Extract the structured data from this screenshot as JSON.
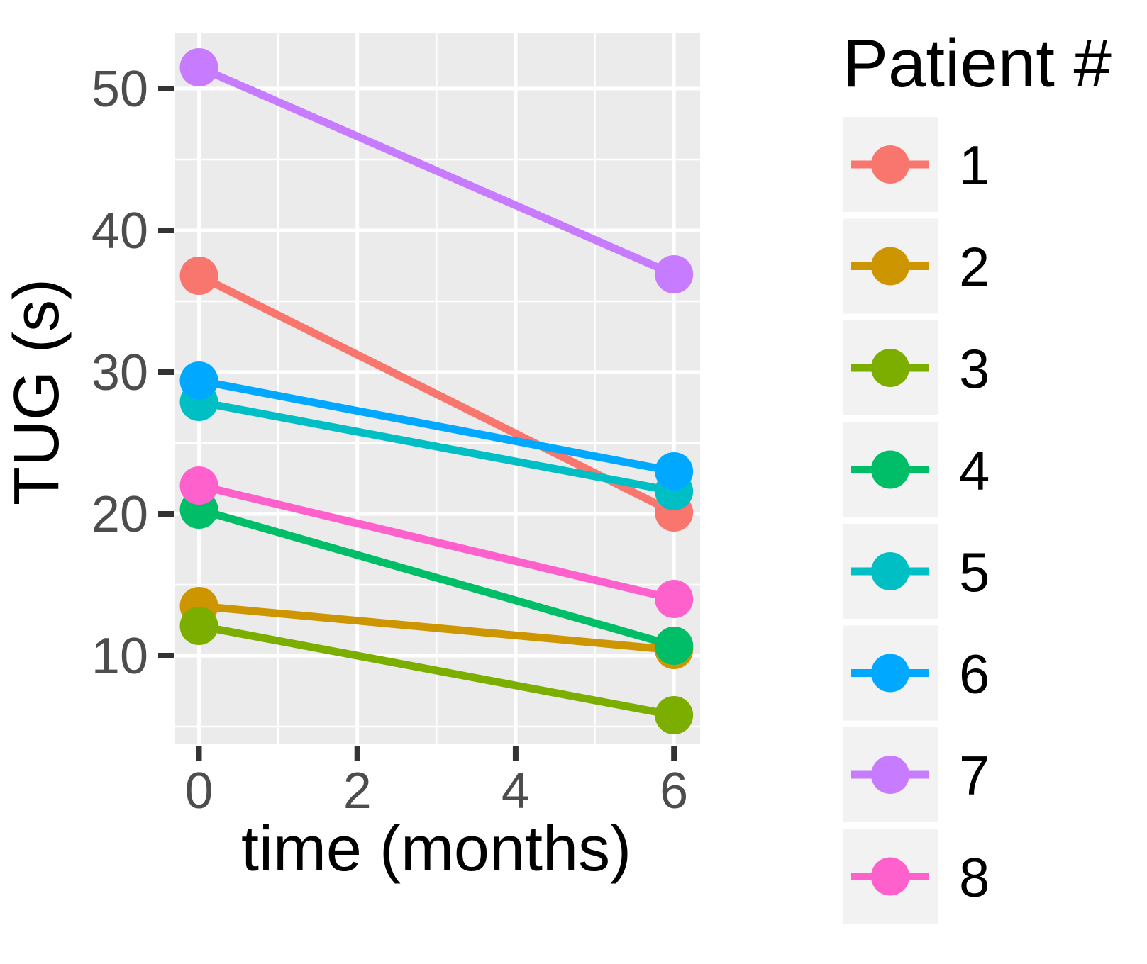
{
  "chart_data": {
    "type": "line",
    "title": "",
    "xlabel": "time (months)",
    "ylabel": "TUG (s)",
    "legend_title": "Patient #",
    "legend_position": "right",
    "x": [
      0,
      6
    ],
    "x_ticks": [
      "0",
      "2",
      "4",
      "6"
    ],
    "x_tick_values": [
      0,
      2,
      4,
      6
    ],
    "x_minor_values": [
      1,
      3,
      5
    ],
    "y_ticks": [
      "10",
      "20",
      "30",
      "40",
      "50"
    ],
    "y_tick_values": [
      10,
      20,
      30,
      40,
      50
    ],
    "y_minor_values": [
      5,
      15,
      25,
      35,
      45
    ],
    "xlim": [
      -0.3,
      6.33
    ],
    "ylim": [
      3.75,
      53.9
    ],
    "grid": "white major and minor gridlines on gray panel",
    "series": [
      {
        "name": "1",
        "color": "#F8766D",
        "values": [
          36.8,
          20.1
        ]
      },
      {
        "name": "2",
        "color": "#CD9600",
        "values": [
          13.5,
          10.4
        ]
      },
      {
        "name": "3",
        "color": "#7CAE00",
        "values": [
          12.1,
          5.8
        ]
      },
      {
        "name": "4",
        "color": "#00BE67",
        "values": [
          20.3,
          10.7
        ]
      },
      {
        "name": "5",
        "color": "#00BFC4",
        "values": [
          27.9,
          21.6
        ]
      },
      {
        "name": "6",
        "color": "#00A9FF",
        "values": [
          29.4,
          23.0
        ]
      },
      {
        "name": "7",
        "color": "#C77CFF",
        "values": [
          51.5,
          36.9
        ]
      },
      {
        "name": "8",
        "color": "#FF61CC",
        "values": [
          22.0,
          14.0
        ]
      }
    ]
  },
  "colors": {
    "panel_bg": "#EBEBEB",
    "grid": "#FFFFFF",
    "legend_key_bg": "#F2F2F2",
    "tick_mark": "#333333",
    "tick_label": "#4D4D4D",
    "axis_title": "#000000",
    "legend_text": "#000000",
    "background": "#FFFFFF"
  }
}
